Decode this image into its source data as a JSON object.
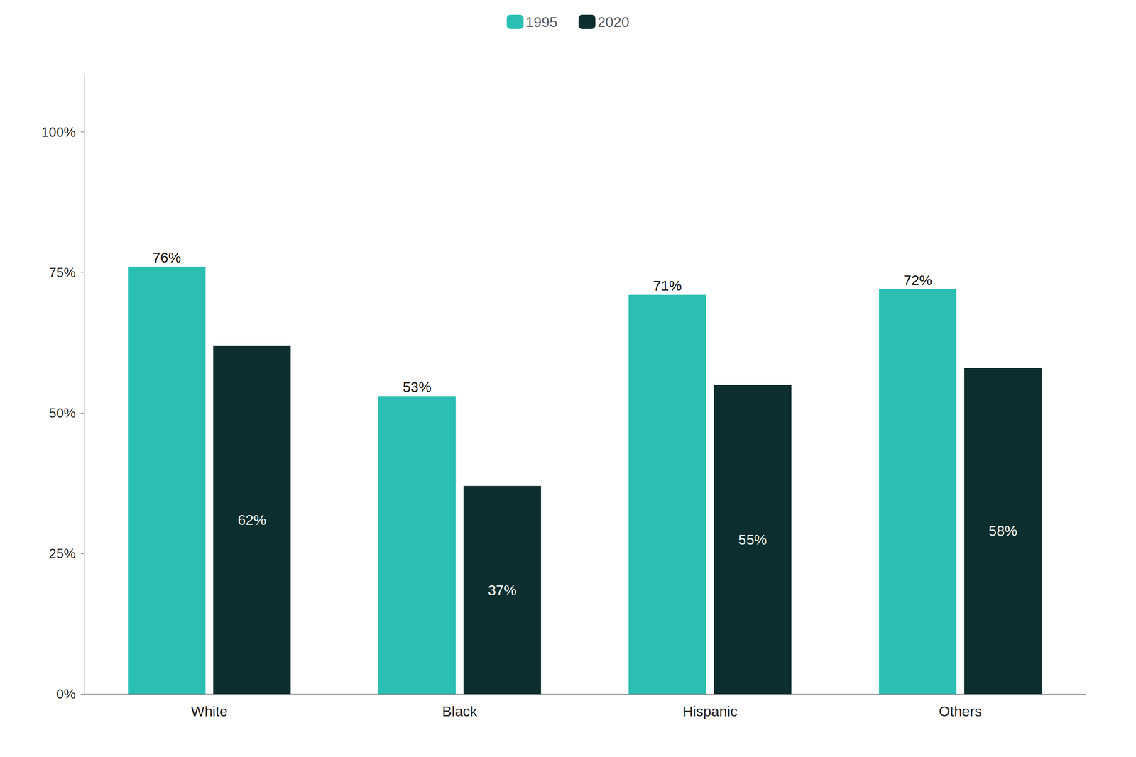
{
  "chart_data": {
    "type": "bar",
    "categories": [
      "White",
      "Black",
      "Hispanic",
      "Others"
    ],
    "series": [
      {
        "name": "1995",
        "color": "#2BBFB3",
        "values": [
          0.76,
          0.53,
          0.71,
          0.72
        ],
        "value_labels": [
          "76%",
          "53%",
          "71%",
          "72%"
        ]
      },
      {
        "name": "2020",
        "color": "#0D2E2E",
        "values": [
          0.62,
          0.37,
          0.55,
          0.58
        ],
        "value_labels": [
          "62%",
          "37%",
          "55%",
          "58%"
        ]
      }
    ],
    "ylim": [
      0,
      1.1
    ],
    "yticks": [
      {
        "value": 0,
        "label": "0%"
      },
      {
        "value": 0.25,
        "label": "25%"
      },
      {
        "value": 0.5,
        "label": "50%"
      },
      {
        "value": 0.75,
        "label": "75%"
      },
      {
        "value": 1.0,
        "label": "100%"
      }
    ],
    "grid": false,
    "legend": "top",
    "data_labels": true
  }
}
